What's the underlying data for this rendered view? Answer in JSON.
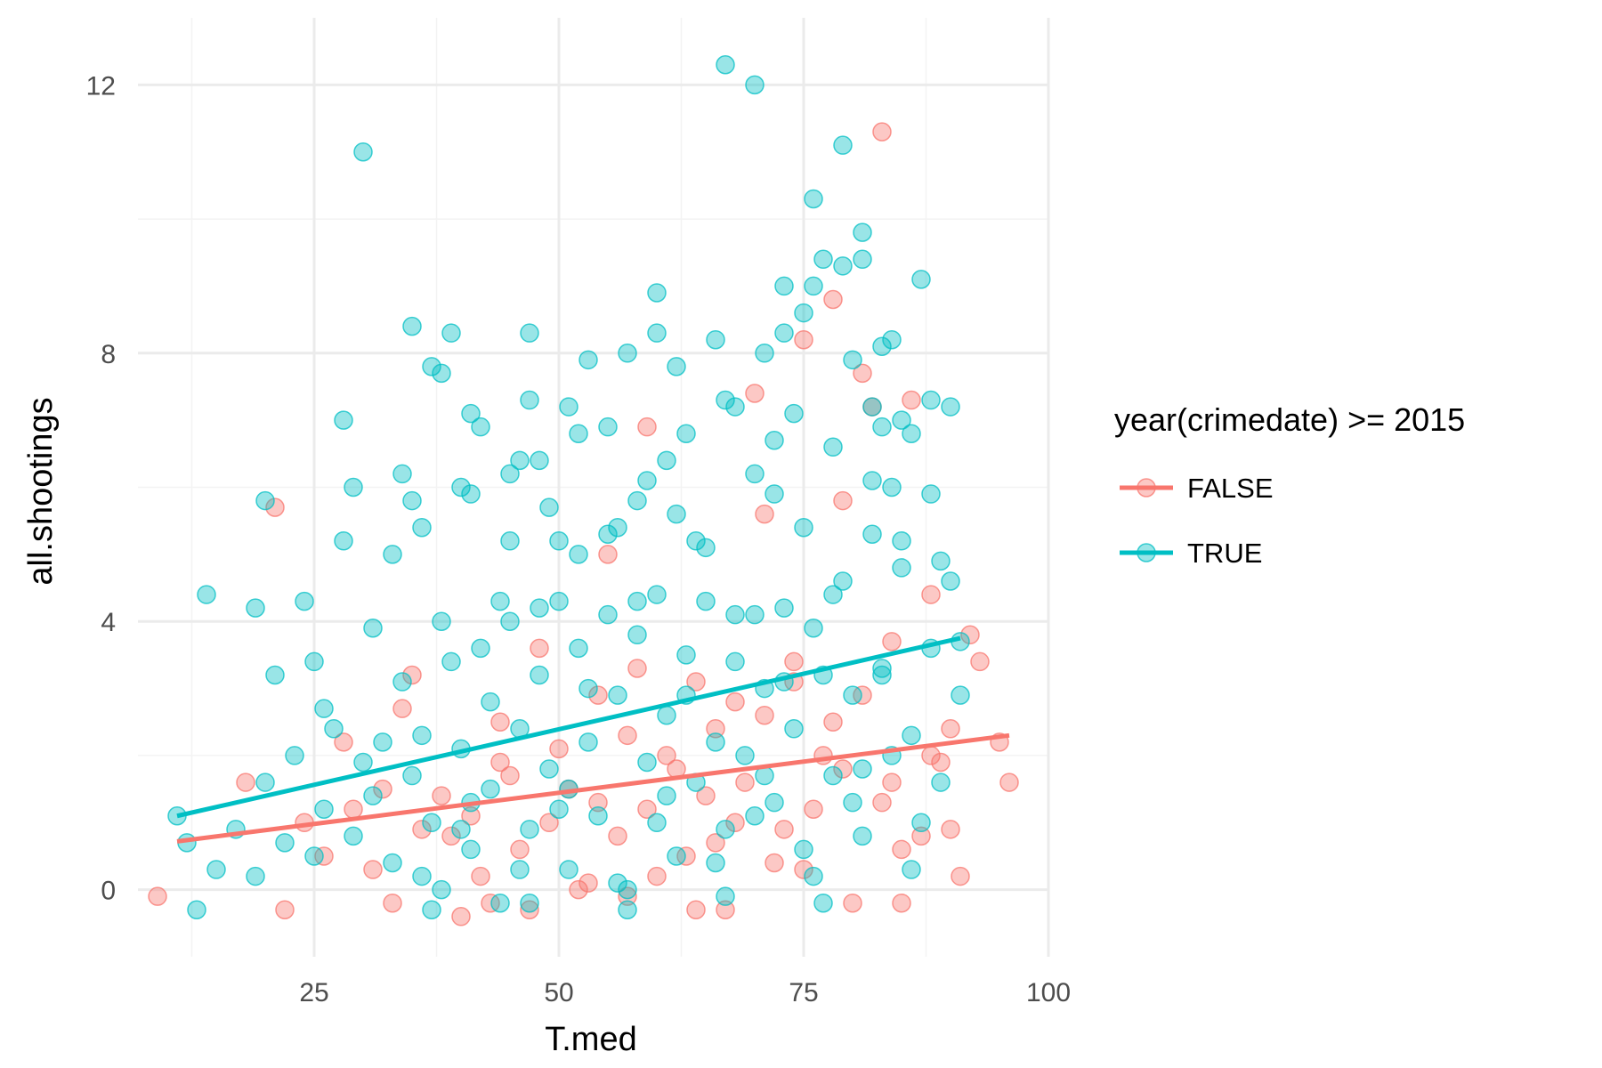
{
  "chart_data": {
    "type": "scatter",
    "xlabel": "T.med",
    "ylabel": "all.shootings",
    "xlim": [
      7,
      100
    ],
    "ylim": [
      -1,
      13
    ],
    "x_ticks": [
      25,
      50,
      75,
      100
    ],
    "y_ticks": [
      0,
      4,
      8,
      12
    ],
    "grid": true,
    "legend": {
      "title": "year(crimedate) >= 2015",
      "placement": "right"
    },
    "series": [
      {
        "name": "FALSE",
        "color": "#F8766D",
        "trend": {
          "x": [
            11,
            96
          ],
          "y": [
            0.72,
            2.3
          ]
        },
        "points": [
          [
            9,
            -0.1
          ],
          [
            21,
            5.7
          ],
          [
            22,
            -0.3
          ],
          [
            28,
            2.2
          ],
          [
            33,
            -0.2
          ],
          [
            35,
            3.2
          ],
          [
            38,
            1.4
          ],
          [
            40,
            -0.4
          ],
          [
            42,
            0.2
          ],
          [
            44,
            1.9
          ],
          [
            47,
            -0.3
          ],
          [
            50,
            2.1
          ],
          [
            52,
            0.0
          ],
          [
            54,
            1.3
          ],
          [
            55,
            5.0
          ],
          [
            57,
            2.3
          ],
          [
            59,
            6.9
          ],
          [
            60,
            0.2
          ],
          [
            62,
            1.8
          ],
          [
            64,
            -0.3
          ],
          [
            66,
            2.4
          ],
          [
            68,
            1.0
          ],
          [
            70,
            7.4
          ],
          [
            71,
            5.6
          ],
          [
            72,
            0.4
          ],
          [
            74,
            3.1
          ],
          [
            75,
            8.2
          ],
          [
            77,
            2.0
          ],
          [
            78,
            8.8
          ],
          [
            79,
            5.8
          ],
          [
            81,
            7.7
          ],
          [
            82,
            7.2
          ],
          [
            83,
            11.3
          ],
          [
            84,
            1.6
          ],
          [
            85,
            -0.2
          ],
          [
            86,
            7.3
          ],
          [
            87,
            0.8
          ],
          [
            88,
            4.4
          ],
          [
            90,
            2.4
          ],
          [
            91,
            0.2
          ],
          [
            92,
            3.8
          ],
          [
            93,
            3.4
          ],
          [
            95,
            2.2
          ],
          [
            96,
            1.6
          ],
          [
            36,
            0.9
          ],
          [
            46,
            0.6
          ],
          [
            56,
            0.8
          ],
          [
            66,
            0.7
          ],
          [
            76,
            1.2
          ],
          [
            26,
            0.5
          ],
          [
            31,
            0.3
          ],
          [
            41,
            1.1
          ],
          [
            51,
            1.5
          ],
          [
            61,
            2.0
          ],
          [
            71,
            2.6
          ],
          [
            81,
            2.9
          ],
          [
            53,
            0.1
          ],
          [
            63,
            0.5
          ],
          [
            73,
            0.9
          ],
          [
            83,
            1.3
          ],
          [
            45,
            1.7
          ],
          [
            65,
            1.4
          ],
          [
            75,
            0.3
          ],
          [
            85,
            0.6
          ],
          [
            29,
            1.2
          ],
          [
            39,
            0.8
          ],
          [
            49,
            1.0
          ],
          [
            59,
            1.2
          ],
          [
            69,
            1.6
          ],
          [
            79,
            1.8
          ],
          [
            89,
            1.9
          ],
          [
            34,
            2.7
          ],
          [
            44,
            2.5
          ],
          [
            54,
            2.9
          ],
          [
            64,
            3.1
          ],
          [
            74,
            3.4
          ],
          [
            84,
            3.7
          ],
          [
            18,
            1.6
          ],
          [
            24,
            1.0
          ],
          [
            32,
            1.5
          ],
          [
            48,
            3.6
          ],
          [
            58,
            3.3
          ],
          [
            68,
            2.8
          ],
          [
            78,
            2.5
          ],
          [
            88,
            2.0
          ],
          [
            43,
            -0.2
          ],
          [
            57,
            -0.1
          ],
          [
            67,
            -0.3
          ],
          [
            80,
            -0.2
          ],
          [
            90,
            0.9
          ]
        ]
      },
      {
        "name": "TRUE",
        "color": "#00BFC4",
        "trend": {
          "x": [
            11,
            91
          ],
          "y": [
            1.1,
            3.75
          ]
        },
        "points": [
          [
            11,
            1.1
          ],
          [
            13,
            -0.3
          ],
          [
            14,
            4.4
          ],
          [
            19,
            4.2
          ],
          [
            20,
            5.8
          ],
          [
            21,
            3.2
          ],
          [
            24,
            4.3
          ],
          [
            25,
            3.4
          ],
          [
            28,
            7.0
          ],
          [
            28,
            5.2
          ],
          [
            29,
            6.0
          ],
          [
            30,
            11.0
          ],
          [
            31,
            3.9
          ],
          [
            33,
            5.0
          ],
          [
            34,
            6.2
          ],
          [
            35,
            5.8
          ],
          [
            35,
            8.4
          ],
          [
            36,
            5.4
          ],
          [
            37,
            7.8
          ],
          [
            38,
            7.7
          ],
          [
            39,
            8.3
          ],
          [
            40,
            6.0
          ],
          [
            41,
            5.9
          ],
          [
            41,
            7.1
          ],
          [
            42,
            6.9
          ],
          [
            44,
            4.3
          ],
          [
            45,
            6.2
          ],
          [
            46,
            6.4
          ],
          [
            47,
            8.3
          ],
          [
            47,
            7.3
          ],
          [
            48,
            6.4
          ],
          [
            49,
            5.7
          ],
          [
            50,
            5.2
          ],
          [
            51,
            7.2
          ],
          [
            52,
            6.8
          ],
          [
            53,
            7.9
          ],
          [
            55,
            6.9
          ],
          [
            56,
            5.4
          ],
          [
            57,
            8.0
          ],
          [
            58,
            5.8
          ],
          [
            59,
            6.1
          ],
          [
            60,
            8.3
          ],
          [
            60,
            8.9
          ],
          [
            61,
            6.4
          ],
          [
            62,
            7.8
          ],
          [
            63,
            6.8
          ],
          [
            64,
            5.2
          ],
          [
            66,
            8.2
          ],
          [
            67,
            7.3
          ],
          [
            67,
            12.3
          ],
          [
            68,
            7.2
          ],
          [
            70,
            12.0
          ],
          [
            70,
            6.2
          ],
          [
            71,
            8.0
          ],
          [
            72,
            6.7
          ],
          [
            73,
            9.0
          ],
          [
            73,
            8.3
          ],
          [
            74,
            7.1
          ],
          [
            75,
            8.6
          ],
          [
            76,
            9.0
          ],
          [
            76,
            10.3
          ],
          [
            77,
            9.4
          ],
          [
            78,
            6.6
          ],
          [
            79,
            11.1
          ],
          [
            79,
            9.3
          ],
          [
            80,
            7.9
          ],
          [
            81,
            9.8
          ],
          [
            81,
            9.4
          ],
          [
            82,
            7.2
          ],
          [
            83,
            8.1
          ],
          [
            83,
            6.9
          ],
          [
            84,
            8.2
          ],
          [
            85,
            7.0
          ],
          [
            86,
            6.8
          ],
          [
            87,
            9.1
          ],
          [
            88,
            7.3
          ],
          [
            88,
            5.9
          ],
          [
            89,
            4.9
          ],
          [
            90,
            7.2
          ],
          [
            90,
            4.6
          ],
          [
            91,
            3.7
          ],
          [
            91,
            2.9
          ],
          [
            12,
            0.7
          ],
          [
            15,
            0.3
          ],
          [
            17,
            0.9
          ],
          [
            19,
            0.2
          ],
          [
            20,
            1.6
          ],
          [
            22,
            0.7
          ],
          [
            23,
            2.0
          ],
          [
            25,
            0.5
          ],
          [
            26,
            1.2
          ],
          [
            27,
            2.4
          ],
          [
            29,
            0.8
          ],
          [
            30,
            1.9
          ],
          [
            32,
            2.2
          ],
          [
            33,
            0.4
          ],
          [
            34,
            3.1
          ],
          [
            36,
            2.3
          ],
          [
            37,
            1.0
          ],
          [
            38,
            0.0
          ],
          [
            39,
            3.4
          ],
          [
            40,
            2.1
          ],
          [
            41,
            0.6
          ],
          [
            42,
            3.6
          ],
          [
            43,
            1.5
          ],
          [
            44,
            -0.2
          ],
          [
            45,
            4.0
          ],
          [
            46,
            2.4
          ],
          [
            47,
            0.9
          ],
          [
            48,
            3.2
          ],
          [
            49,
            1.8
          ],
          [
            50,
            4.3
          ],
          [
            51,
            0.3
          ],
          [
            52,
            3.6
          ],
          [
            53,
            2.2
          ],
          [
            54,
            1.1
          ],
          [
            55,
            4.1
          ],
          [
            56,
            2.9
          ],
          [
            57,
            0.0
          ],
          [
            58,
            3.8
          ],
          [
            59,
            1.9
          ],
          [
            60,
            4.4
          ],
          [
            61,
            2.6
          ],
          [
            62,
            0.5
          ],
          [
            63,
            3.5
          ],
          [
            64,
            1.6
          ],
          [
            65,
            4.3
          ],
          [
            66,
            2.2
          ],
          [
            67,
            0.9
          ],
          [
            68,
            3.4
          ],
          [
            69,
            2.0
          ],
          [
            70,
            4.1
          ],
          [
            71,
            3.0
          ],
          [
            72,
            1.3
          ],
          [
            73,
            4.2
          ],
          [
            74,
            2.4
          ],
          [
            75,
            0.6
          ],
          [
            76,
            3.9
          ],
          [
            77,
            3.2
          ],
          [
            78,
            1.7
          ],
          [
            79,
            4.6
          ],
          [
            80,
            2.9
          ],
          [
            81,
            0.8
          ],
          [
            82,
            5.3
          ],
          [
            83,
            3.3
          ],
          [
            84,
            2.0
          ],
          [
            85,
            4.8
          ],
          [
            86,
            2.3
          ],
          [
            87,
            1.0
          ],
          [
            88,
            3.6
          ],
          [
            89,
            1.6
          ],
          [
            36,
            0.2
          ],
          [
            46,
            0.3
          ],
          [
            56,
            0.1
          ],
          [
            66,
            0.4
          ],
          [
            76,
            0.2
          ],
          [
            86,
            0.3
          ],
          [
            41,
            1.3
          ],
          [
            51,
            1.5
          ],
          [
            61,
            1.4
          ],
          [
            71,
            1.7
          ],
          [
            81,
            1.8
          ],
          [
            43,
            2.8
          ],
          [
            53,
            3.0
          ],
          [
            63,
            2.9
          ],
          [
            73,
            3.1
          ],
          [
            83,
            3.2
          ],
          [
            38,
            4.0
          ],
          [
            48,
            4.2
          ],
          [
            58,
            4.3
          ],
          [
            68,
            4.1
          ],
          [
            78,
            4.4
          ],
          [
            45,
            5.2
          ],
          [
            55,
            5.3
          ],
          [
            65,
            5.1
          ],
          [
            75,
            5.4
          ],
          [
            85,
            5.2
          ],
          [
            37,
            -0.3
          ],
          [
            47,
            -0.2
          ],
          [
            57,
            -0.3
          ],
          [
            67,
            -0.1
          ],
          [
            77,
            -0.2
          ],
          [
            31,
            1.4
          ],
          [
            35,
            1.7
          ],
          [
            40,
            0.9
          ],
          [
            50,
            1.2
          ],
          [
            60,
            1.0
          ],
          [
            70,
            1.1
          ],
          [
            80,
            1.3
          ],
          [
            26,
            2.7
          ],
          [
            52,
            5.0
          ],
          [
            62,
            5.6
          ],
          [
            72,
            5.9
          ],
          [
            82,
            6.1
          ],
          [
            84,
            6.0
          ]
        ]
      }
    ]
  }
}
